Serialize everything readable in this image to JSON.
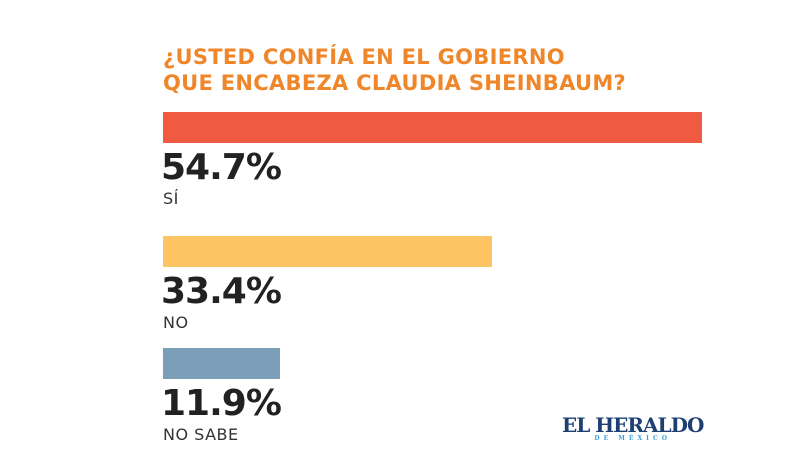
{
  "chart_data": {
    "type": "bar",
    "orientation": "horizontal",
    "title": [
      "¿USTED CONFÍA EN EL GOBIERNO",
      "QUE ENCABEZA CLAUDIA SHEINBAUM?"
    ],
    "categories": [
      "SÍ",
      "NO",
      "NO SABE"
    ],
    "values": [
      54.7,
      33.4,
      11.9
    ],
    "value_labels": [
      "54.7%",
      "33.4%",
      "11.9%"
    ],
    "colors": [
      "#ef5a40",
      "#fdc463",
      "#7b9fb8"
    ],
    "title_color": "#f0862a",
    "xlabel": "",
    "ylabel": "",
    "grid": false
  },
  "logo": {
    "line1": "EL HERALDO",
    "line2": "DE MÉXICO"
  }
}
